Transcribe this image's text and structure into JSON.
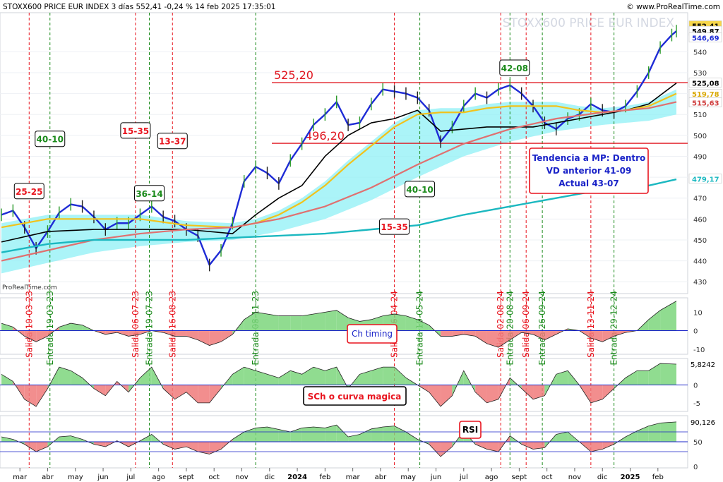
{
  "header": {
    "title": "STOXX600 PRICE EUR INDEX 3 días 552,41 -0,24 % 14 feb 2025 17:35:01",
    "site": "© www.ProRealTime.com",
    "watermark": "STOXX600 PRICE EUR INDEX",
    "source": "ProRealTime.com"
  },
  "colors": {
    "price_line": "#1e2bd6",
    "sma_black": "#000000",
    "sma_yellow": "#f2c21b",
    "sma_red": "#e07070",
    "sma_teal": "#1bb8c0",
    "cloud_up": "#8ff0f5",
    "cloud_down": "#f08080",
    "osc_up": "#7dd67d",
    "osc_down": "#f07a7a",
    "annot_red": "#e8141e",
    "annot_green": "#1a8a1a",
    "hline": "#e0141e"
  },
  "chart_data": [
    {
      "type": "line",
      "panel": "price",
      "ylim": [
        425,
        558
      ],
      "yticks": [
        430,
        440,
        450,
        460,
        470,
        480,
        490,
        500,
        510,
        520,
        530,
        540
      ],
      "right_labels": [
        {
          "text": "552,41",
          "value": 552.41,
          "color": "#000000",
          "bg": "#f7d64a"
        },
        {
          "text": "549,87",
          "value": 549.87,
          "color": "#000000",
          "bg": "#ffffff"
        },
        {
          "text": "546,69",
          "value": 546.69,
          "color": "#1e2bd6",
          "bg": "#ffffff"
        },
        {
          "text": "525,08",
          "value": 525.08,
          "color": "#000000",
          "bg": "#ffffff"
        },
        {
          "text": "519,78",
          "value": 519.78,
          "color": "#d9a800",
          "bg": "#ffffff"
        },
        {
          "text": "515,63",
          "value": 515.63,
          "color": "#d04040",
          "bg": "#ffffff"
        },
        {
          "text": "479,17",
          "value": 479.17,
          "color": "#1bb8c0",
          "bg": "#ffffff"
        }
      ],
      "x_months": [
        "mar",
        "abr",
        "may",
        "jun",
        "jul",
        "ago",
        "sept",
        "oct",
        "nov",
        "dic",
        "2024",
        "feb",
        "mar",
        "abr",
        "may",
        "jun",
        "jul",
        "ago",
        "sept",
        "oct",
        "nov",
        "dic",
        "2025",
        "feb"
      ],
      "hlines": [
        {
          "label": "525,20",
          "value": 525.2
        },
        {
          "label": "496,20",
          "value": 496.2
        }
      ],
      "series": [
        {
          "name": "price",
          "x": [
            0,
            5,
            10,
            15,
            20,
            25,
            30,
            35,
            40,
            45,
            50,
            55,
            60,
            65,
            70,
            75,
            80,
            85,
            90,
            95,
            100,
            105,
            110,
            115,
            120,
            125,
            130,
            135,
            140,
            145,
            150,
            155,
            160,
            165,
            170,
            175,
            180,
            185,
            190,
            195,
            200,
            205,
            210,
            215,
            220,
            225,
            230,
            235,
            240,
            245,
            250,
            255,
            260,
            265,
            270,
            275,
            280,
            285,
            290,
            292
          ],
          "values": [
            462,
            464,
            456,
            446,
            454,
            463,
            467,
            466,
            461,
            455,
            458,
            458,
            462,
            466,
            461,
            459,
            455,
            452,
            438,
            445,
            458,
            478,
            485,
            482,
            477,
            488,
            496,
            505,
            510,
            516,
            505,
            506,
            515,
            522,
            521,
            520,
            518,
            512,
            497,
            504,
            514,
            520,
            518,
            522,
            524,
            520,
            514,
            506,
            503,
            508,
            510,
            515,
            512,
            511,
            514,
            521,
            530,
            542,
            548,
            549.87
          ]
        },
        {
          "name": "sma_black",
          "x": [
            0,
            20,
            40,
            60,
            80,
            100,
            110,
            120,
            130,
            140,
            150,
            160,
            170,
            180,
            190,
            200,
            210,
            220,
            230,
            240,
            250,
            260,
            270,
            280,
            292
          ],
          "values": [
            449,
            454,
            455,
            455,
            455,
            453,
            462,
            470,
            476,
            490,
            500,
            506,
            508,
            512,
            502,
            503,
            504,
            504,
            504,
            506,
            508,
            510,
            512,
            515,
            525
          ]
        },
        {
          "name": "sma_yellow",
          "x": [
            0,
            20,
            40,
            60,
            80,
            100,
            110,
            120,
            130,
            140,
            150,
            160,
            170,
            180,
            190,
            200,
            210,
            220,
            230,
            240,
            250,
            260,
            270,
            280,
            292
          ],
          "values": [
            456,
            460,
            460,
            460,
            457,
            456,
            458,
            462,
            468,
            476,
            486,
            495,
            504,
            510,
            511,
            511,
            513,
            514,
            514,
            514,
            512,
            511,
            512,
            514,
            520
          ]
        },
        {
          "name": "sma_red",
          "x": [
            0,
            20,
            40,
            60,
            80,
            100,
            120,
            140,
            160,
            180,
            200,
            220,
            240,
            260,
            280,
            292
          ],
          "values": [
            440,
            445,
            450,
            453,
            455,
            456,
            460,
            466,
            475,
            486,
            496,
            503,
            508,
            511,
            513,
            516
          ]
        },
        {
          "name": "sma_teal",
          "x": [
            0,
            20,
            40,
            60,
            80,
            100,
            120,
            140,
            160,
            180,
            200,
            220,
            240,
            260,
            280,
            292
          ],
          "values": [
            444,
            448,
            450,
            450,
            450,
            451,
            452,
            453,
            455,
            457,
            462,
            466,
            470,
            474,
            476,
            479
          ]
        }
      ],
      "annotations": [
        {
          "text": "25-25",
          "color": "red",
          "x": 12,
          "value": 473
        },
        {
          "text": "40-10",
          "color": "green",
          "x": 21,
          "value": 498
        },
        {
          "text": "15-35",
          "color": "red",
          "x": 58,
          "value": 502
        },
        {
          "text": "36-14",
          "color": "green",
          "x": 64,
          "value": 472
        },
        {
          "text": "13-37",
          "color": "red",
          "x": 74,
          "value": 497
        },
        {
          "text": "40-10",
          "color": "green",
          "x": 181,
          "value": 474
        },
        {
          "text": "15-35",
          "color": "red",
          "x": 170,
          "value": 456
        },
        {
          "text": "42-08",
          "color": "green",
          "x": 222,
          "value": 532
        }
      ],
      "vlines": [
        {
          "text": "Salida 10-03-23",
          "color": "red",
          "x": 12
        },
        {
          "text": "Entrada 19-03-23",
          "color": "green",
          "x": 21
        },
        {
          "text": "Salida 06-07-23",
          "color": "red",
          "x": 58
        },
        {
          "text": "Entrada 19-07-23",
          "color": "green",
          "x": 64
        },
        {
          "text": "Salida 16-08-23",
          "color": "red",
          "x": 74
        },
        {
          "text": "Entrada 08-11-23",
          "color": "green",
          "x": 110
        },
        {
          "text": "Salida 16-04-24",
          "color": "red",
          "x": 170
        },
        {
          "text": "Entrada 10-05-24",
          "color": "green",
          "x": 181
        },
        {
          "text": "Salida 02-08-24",
          "color": "red",
          "x": 216
        },
        {
          "text": "Entrada 20-08-24",
          "color": "green",
          "x": 220
        },
        {
          "text": "Salida 06-09-24",
          "color": "red",
          "x": 227
        },
        {
          "text": "Entrada 26-09-24",
          "color": "green",
          "x": 234
        },
        {
          "text": "Salida 13-11-24",
          "color": "red",
          "x": 255
        },
        {
          "text": "Entrada 29-12-24",
          "color": "green",
          "x": 265
        }
      ],
      "info_box": {
        "lines": [
          "Tendencia a MP: Dentro",
          "VD anterior 41-09",
          "Actual 43-07"
        ]
      }
    },
    {
      "type": "area",
      "panel": "ch_timing",
      "label": "Ch timing",
      "ylim": [
        -12,
        17
      ],
      "yticks": [
        -10,
        0,
        10
      ],
      "x": [
        0,
        5,
        10,
        15,
        20,
        25,
        30,
        35,
        40,
        45,
        50,
        55,
        60,
        65,
        70,
        75,
        80,
        85,
        90,
        95,
        100,
        105,
        110,
        115,
        120,
        125,
        130,
        135,
        140,
        145,
        150,
        155,
        160,
        165,
        170,
        175,
        180,
        185,
        190,
        195,
        200,
        205,
        210,
        215,
        220,
        225,
        230,
        235,
        240,
        245,
        250,
        255,
        260,
        265,
        270,
        275,
        280,
        285,
        292
      ],
      "values": [
        4,
        2,
        -3,
        -6,
        -3,
        2,
        4,
        3,
        0,
        -2,
        -1,
        -3,
        -2,
        0,
        -1,
        -3,
        -3,
        -5,
        -8,
        -6,
        -2,
        6,
        10,
        9,
        8,
        8,
        8,
        9,
        10,
        11,
        7,
        5,
        6,
        8,
        9,
        8,
        6,
        3,
        -3,
        -3,
        -2,
        -3,
        -7,
        -9,
        -5,
        -1,
        -2,
        -5,
        -2,
        1,
        0,
        -4,
        -6,
        -3,
        -1,
        0,
        6,
        11,
        16
      ]
    },
    {
      "type": "area",
      "panel": "sch",
      "label": "SCh o curva magica",
      "ylim": [
        -7,
        7
      ],
      "yticks": [
        -5,
        0
      ],
      "right_label": "5,8242",
      "x": [
        0,
        5,
        10,
        15,
        20,
        25,
        30,
        35,
        40,
        45,
        50,
        55,
        60,
        65,
        70,
        75,
        80,
        85,
        90,
        95,
        100,
        105,
        110,
        115,
        120,
        125,
        130,
        135,
        140,
        145,
        150,
        155,
        160,
        165,
        170,
        175,
        180,
        185,
        190,
        195,
        200,
        205,
        210,
        215,
        220,
        225,
        230,
        235,
        240,
        245,
        250,
        255,
        260,
        265,
        270,
        275,
        280,
        285,
        292
      ],
      "values": [
        3,
        1,
        -4,
        -6,
        -1,
        5,
        4,
        2,
        -1,
        -3,
        1,
        -2,
        2,
        5,
        -1,
        -4,
        -2,
        -5,
        -5,
        -1,
        3,
        5,
        4,
        3,
        2,
        4,
        3,
        5,
        4,
        5,
        -1,
        3,
        4,
        5,
        5,
        2,
        0,
        -2,
        -6,
        -3,
        4,
        -2,
        -5,
        -4,
        2,
        -1,
        -4,
        -3,
        3,
        4,
        0,
        -5,
        -4,
        -1,
        2,
        4,
        4,
        6,
        5.82
      ]
    },
    {
      "type": "area",
      "panel": "rsi",
      "label": "RSI",
      "ylim": [
        0,
        100
      ],
      "yticks": [
        0,
        50
      ],
      "right_label": "90,126",
      "x": [
        0,
        5,
        10,
        15,
        20,
        25,
        30,
        35,
        40,
        45,
        50,
        55,
        60,
        65,
        70,
        75,
        80,
        85,
        90,
        95,
        100,
        105,
        110,
        115,
        120,
        125,
        130,
        135,
        140,
        145,
        150,
        155,
        160,
        165,
        170,
        175,
        180,
        185,
        190,
        195,
        200,
        205,
        210,
        215,
        220,
        225,
        230,
        235,
        240,
        245,
        250,
        255,
        260,
        265,
        270,
        275,
        280,
        285,
        292
      ],
      "values": [
        60,
        55,
        45,
        30,
        40,
        60,
        62,
        55,
        45,
        40,
        52,
        40,
        52,
        65,
        45,
        35,
        40,
        30,
        25,
        35,
        55,
        70,
        78,
        80,
        75,
        70,
        78,
        80,
        78,
        84,
        60,
        65,
        76,
        80,
        82,
        70,
        55,
        45,
        20,
        40,
        72,
        45,
        35,
        30,
        62,
        45,
        35,
        38,
        65,
        70,
        50,
        30,
        35,
        45,
        60,
        72,
        82,
        88,
        90.13
      ]
    }
  ]
}
